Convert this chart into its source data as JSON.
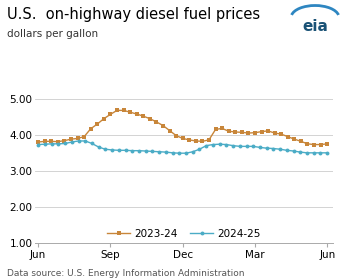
{
  "title": "U.S.  on-highway diesel fuel prices",
  "subtitle": "dollars per gallon",
  "source": "Data source: U.S. Energy Information Administration",
  "ylim": [
    1.0,
    5.5
  ],
  "yticks": [
    1.0,
    2.0,
    3.0,
    4.0,
    5.0
  ],
  "xlabel_ticks": [
    "Jun",
    "Sep",
    "Dec",
    "Mar",
    "Jun"
  ],
  "xtick_pos": [
    0,
    13,
    26,
    39,
    52
  ],
  "xlim": [
    -0.5,
    53
  ],
  "series_2023": {
    "label": "2023-24",
    "color": "#c8863a",
    "marker": "s",
    "values": [
      3.8,
      3.82,
      3.82,
      3.81,
      3.84,
      3.88,
      3.9,
      3.95,
      4.17,
      4.3,
      4.45,
      4.57,
      4.68,
      4.68,
      4.63,
      4.58,
      4.52,
      4.45,
      4.36,
      4.26,
      4.12,
      3.98,
      3.9,
      3.86,
      3.83,
      3.82,
      3.86,
      4.15,
      4.18,
      4.1,
      4.08,
      4.07,
      4.05,
      4.06,
      4.09,
      4.11,
      4.05,
      4.02,
      3.95,
      3.88,
      3.82,
      3.75,
      3.73,
      3.73,
      3.75
    ]
  },
  "series_2024": {
    "label": "2024-25",
    "color": "#4bacc6",
    "marker": "o",
    "values": [
      3.73,
      3.74,
      3.75,
      3.75,
      3.76,
      3.8,
      3.83,
      3.83,
      3.76,
      3.66,
      3.6,
      3.58,
      3.57,
      3.57,
      3.56,
      3.56,
      3.55,
      3.54,
      3.53,
      3.52,
      3.5,
      3.49,
      3.49,
      3.53,
      3.6,
      3.7,
      3.73,
      3.74,
      3.73,
      3.7,
      3.68,
      3.68,
      3.68,
      3.65,
      3.63,
      3.62,
      3.6,
      3.57,
      3.55,
      3.52,
      3.5,
      3.5,
      3.5,
      3.5
    ]
  },
  "background_color": "#ffffff",
  "grid_color": "#cccccc",
  "title_fontsize": 10.5,
  "subtitle_fontsize": 7.5,
  "source_fontsize": 6.5,
  "tick_fontsize": 7.5,
  "legend_fontsize": 7.5,
  "eia_color": "#1a5276",
  "eia_arc_color": "#2e86c1"
}
